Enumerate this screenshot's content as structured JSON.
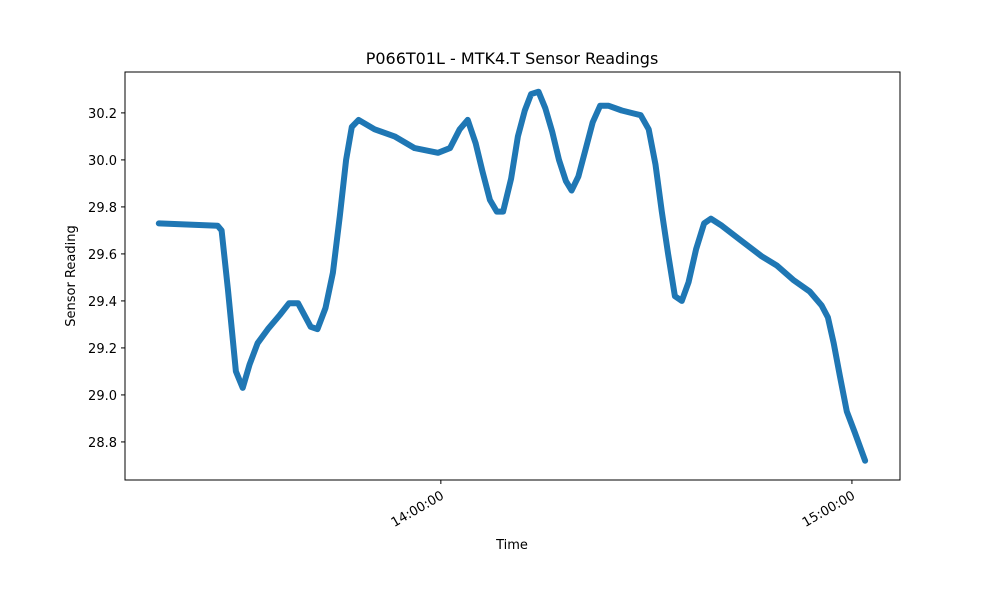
{
  "chart_data": {
    "type": "line",
    "title": "P066T01L - MTK4.T Sensor Readings",
    "x_label": "Time",
    "y_label": "Sensor Reading",
    "color": "#1f77b4",
    "x": [
      "13:18:50",
      "13:27:25",
      "13:28:00",
      "13:28:55",
      "13:30:05",
      "13:31:05",
      "13:32:05",
      "13:33:15",
      "13:34:45",
      "13:36:30",
      "13:37:50",
      "13:39:10",
      "13:41:00",
      "13:42:00",
      "13:43:10",
      "13:44:15",
      "13:45:15",
      "13:46:10",
      "13:47:00",
      "13:48:00",
      "13:50:20",
      "13:53:15",
      "13:56:10",
      "13:59:35",
      "14:01:20",
      "14:02:45",
      "14:03:55",
      "14:05:05",
      "14:06:05",
      "14:07:10",
      "14:08:10",
      "14:09:05",
      "14:10:15",
      "14:11:15",
      "14:12:15",
      "14:13:10",
      "14:14:15",
      "14:15:15",
      "14:16:15",
      "14:17:15",
      "14:18:15",
      "14:19:05",
      "14:20:05",
      "14:21:10",
      "14:22:10",
      "14:23:15",
      "14:24:30",
      "14:26:25",
      "14:29:10",
      "14:30:20",
      "14:31:20",
      "14:32:15",
      "14:33:10",
      "14:34:10",
      "14:35:10",
      "14:36:10",
      "14:37:15",
      "14:38:25",
      "14:39:25",
      "14:41:00",
      "14:43:40",
      "14:46:50",
      "14:49:05",
      "14:51:25",
      "14:53:50",
      "14:55:35",
      "14:56:30",
      "14:57:20",
      "14:58:15",
      "14:59:15",
      "15:00:25",
      "15:01:55"
    ],
    "values": [
      29.73,
      29.72,
      29.7,
      29.45,
      29.1,
      29.03,
      29.13,
      29.22,
      29.28,
      29.34,
      29.39,
      29.39,
      29.29,
      29.28,
      29.37,
      29.52,
      29.76,
      30.0,
      30.14,
      30.17,
      30.13,
      30.1,
      30.05,
      30.03,
      30.05,
      30.13,
      30.17,
      30.07,
      29.95,
      29.83,
      29.78,
      29.78,
      29.92,
      30.1,
      30.21,
      30.28,
      30.29,
      30.22,
      30.12,
      30.0,
      29.91,
      29.87,
      29.93,
      30.05,
      30.16,
      30.23,
      30.23,
      30.21,
      30.19,
      30.13,
      29.98,
      29.78,
      29.6,
      29.42,
      29.4,
      29.48,
      29.62,
      29.73,
      29.75,
      29.72,
      29.66,
      29.59,
      29.55,
      29.49,
      29.44,
      29.38,
      29.33,
      29.22,
      29.08,
      28.93,
      28.84,
      28.72
    ],
    "xlim": [
      "13:13:54",
      "15:07:01"
    ],
    "xticks": [
      "14:00:00",
      "15:00:00"
    ],
    "ylim": [
      28.638,
      30.374
    ],
    "yticks": [
      28.8,
      {
        "value": 29,
        "label": "29.0"
      },
      29.2,
      29.4,
      29.6,
      29.8,
      {
        "value": 30,
        "label": "30.0"
      },
      30.2
    ],
    "grid": false
  }
}
